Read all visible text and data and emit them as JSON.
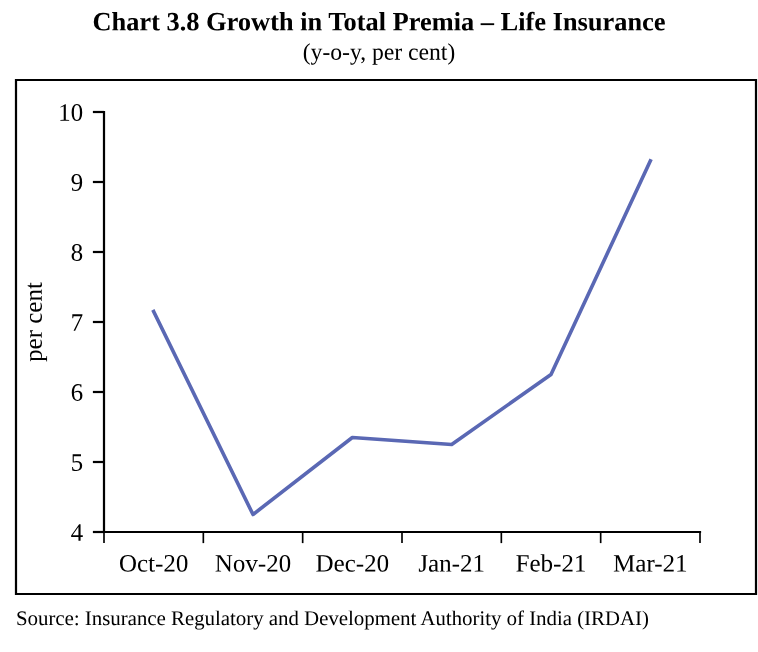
{
  "chart_data": {
    "type": "line",
    "title": "Chart 3.8 Growth in Total Premia – Life Insurance",
    "subtitle": "(y-o-y, per cent)",
    "ylabel": "per cent",
    "categories": [
      "Oct-20",
      "Nov-20",
      "Dec-20",
      "Jan-21",
      "Feb-21",
      "Mar-21"
    ],
    "series": [
      {
        "color": "#5a68b4",
        "values": [
          7.15,
          4.25,
          5.35,
          5.25,
          6.25,
          9.3
        ]
      }
    ],
    "ylim": [
      4,
      10
    ],
    "yticks": [
      4,
      5,
      6,
      7,
      8,
      9,
      10
    ],
    "grid": false,
    "legend": false,
    "marker": "none",
    "line_style": "solid",
    "annotations": [
      "Source: Insurance Regulatory and Development Authority of India (IRDAI)"
    ]
  }
}
